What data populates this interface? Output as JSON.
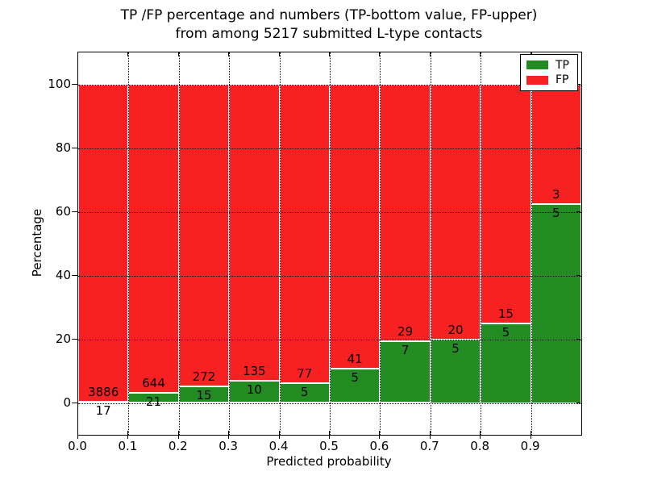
{
  "title": {
    "line1": "TP /FP percentage and numbers (TP-bottom value, FP-upper)",
    "line2": "from among 5217 submitted L-type contacts"
  },
  "chart_data": {
    "type": "bar",
    "stacked": true,
    "orientation": "vertical",
    "title": "TP /FP percentage and numbers (TP-bottom value, FP-upper) from among 5217 submitted L-type contacts",
    "xlabel": "Predicted probability",
    "ylabel": "Percentage",
    "total_contacts": 5217,
    "bin_edges": [
      0.0,
      0.1,
      0.2,
      0.3,
      0.4,
      0.5,
      0.6,
      0.7,
      0.8,
      0.9,
      1.0
    ],
    "series": [
      {
        "name": "TP",
        "color": "#228b22",
        "counts": [
          17,
          21,
          15,
          10,
          5,
          5,
          7,
          5,
          5,
          5
        ]
      },
      {
        "name": "FP",
        "color": "#f82121",
        "counts": [
          3886,
          644,
          272,
          135,
          77,
          41,
          29,
          20,
          15,
          3
        ]
      }
    ],
    "tp_percent_of_bin": [
      0.44,
      3.16,
      5.23,
      6.9,
      6.1,
      10.87,
      19.44,
      20.0,
      25.0,
      62.5
    ],
    "bar_value_labels": "FP count above green top, TP count below green top",
    "x_tick_labels": [
      "0.0",
      "0.1",
      "0.2",
      "0.3",
      "0.4",
      "0.5",
      "0.6",
      "0.7",
      "0.8",
      "0.9"
    ],
    "y_tick_labels": [
      "0",
      "20",
      "40",
      "60",
      "80",
      "100"
    ],
    "y_ticks": [
      0,
      20,
      40,
      60,
      80,
      100
    ],
    "xlim": [
      0.0,
      1.0
    ],
    "ylim": [
      -10,
      110
    ],
    "grid": "dotted black, horizontal at y ticks and vertical at bin edges",
    "bar_edge_color": "#ffffff",
    "legend": {
      "position": "upper right",
      "entries": [
        {
          "label": "TP",
          "color": "#228b22"
        },
        {
          "label": "FP",
          "color": "#f82121"
        }
      ]
    }
  }
}
